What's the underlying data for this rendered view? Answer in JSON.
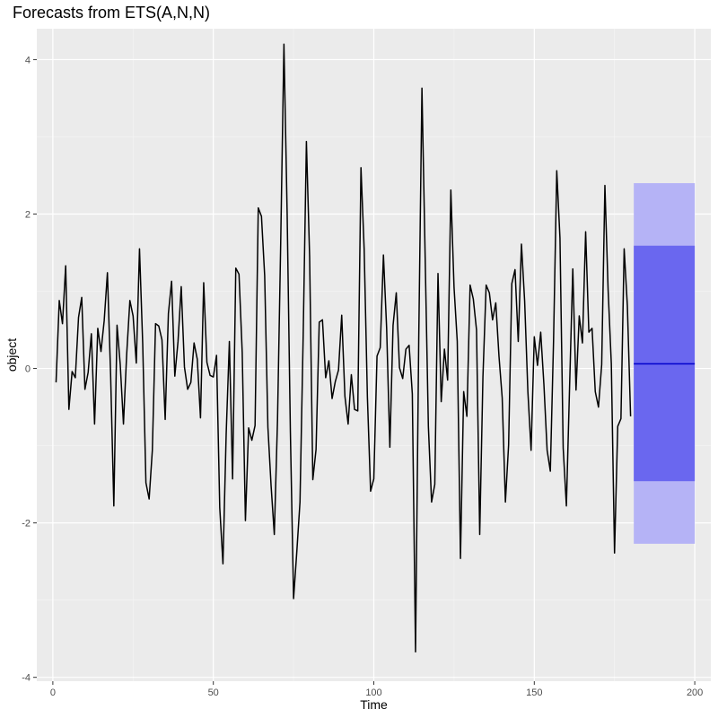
{
  "chart_data": {
    "type": "line",
    "title": "Forecasts from ETS(A,N,N)",
    "xlabel": "Time",
    "ylabel": "object",
    "xlim": [
      -5,
      205
    ],
    "ylim": [
      -4.05,
      4.4
    ],
    "xticks": [
      0,
      50,
      100,
      150,
      200
    ],
    "yticks": [
      -4,
      -2,
      0,
      2,
      4
    ],
    "grid": true,
    "legend": "none",
    "series": [
      {
        "x_start": 1,
        "values": [
          -0.18,
          0.88,
          0.58,
          1.33,
          -0.53,
          -0.04,
          -0.12,
          0.66,
          0.92,
          -0.27,
          -0.05,
          0.45,
          -0.72,
          0.52,
          0.22,
          0.62,
          1.24,
          -0.08,
          -1.78,
          0.56,
          0.05,
          -0.72,
          0.18,
          0.88,
          0.68,
          0.07,
          1.55,
          0.32,
          -1.48,
          -1.69,
          -1.06,
          0.58,
          0.55,
          0.37,
          -0.66,
          0.71,
          1.13,
          -0.1,
          0.35,
          1.06,
          0.02,
          -0.27,
          -0.18,
          0.33,
          0.12,
          -0.64,
          1.11,
          0.08,
          -0.09,
          -0.11,
          0.17,
          -1.8,
          -2.53,
          -0.85,
          0.35,
          -1.43,
          1.3,
          1.22,
          0.21,
          -1.97,
          -0.77,
          -0.93,
          -0.74,
          2.08,
          1.97,
          1.2,
          -0.76,
          -1.52,
          -2.15,
          -0.67,
          1.65,
          4.2,
          2.01,
          -0.81,
          -2.98,
          -2.38,
          -1.73,
          0.43,
          2.94,
          1.45,
          -1.44,
          -1.05,
          0.6,
          0.63,
          -0.12,
          0.1,
          -0.39,
          -0.17,
          -0.02,
          0.69,
          -0.36,
          -0.72,
          -0.08,
          -0.53,
          -0.55,
          2.6,
          1.54,
          -0.37,
          -1.59,
          -1.43,
          0.16,
          0.27,
          1.47,
          0.52,
          -1.02,
          0.56,
          0.98,
          0.01,
          -0.13,
          0.25,
          0.3,
          -0.33,
          -3.67,
          0.38,
          3.63,
          1.44,
          -0.75,
          -1.73,
          -1.5,
          1.23,
          -0.43,
          0.25,
          -0.15,
          2.31,
          1.05,
          0.35,
          -2.46,
          -0.3,
          -0.62,
          1.08,
          0.9,
          0.5,
          -2.15,
          -0.11,
          1.08,
          0.98,
          0.63,
          0.85,
          0.16,
          -0.38,
          -1.73,
          -0.99,
          1.1,
          1.28,
          0.35,
          1.61,
          0.87,
          -0.3,
          -1.06,
          0.41,
          0.04,
          0.47,
          -0.21,
          -1.06,
          -1.33,
          0.36,
          2.56,
          1.69,
          -1.03,
          -1.78,
          -0.23,
          1.29,
          -0.28,
          0.68,
          0.33,
          1.77,
          0.47,
          0.52,
          -0.3,
          -0.5,
          0.05,
          2.37,
          1.02,
          0.06,
          -2.39,
          -0.75,
          -0.65,
          1.55,
          0.81,
          -0.62
        ]
      }
    ],
    "forecast": {
      "x_start": 181,
      "x_end": 200,
      "point": 0.06,
      "lo80": -1.46,
      "hi80": 1.59,
      "lo95": -2.27,
      "hi95": 2.4,
      "color_line": "#0000cc",
      "color_80": "#6a67ef",
      "color_95": "#b5b3f6"
    },
    "colors": {
      "panel": "#ebebeb",
      "grid_major": "#ffffff",
      "grid_minor": "#f5f5f5",
      "series": "#000000"
    }
  }
}
